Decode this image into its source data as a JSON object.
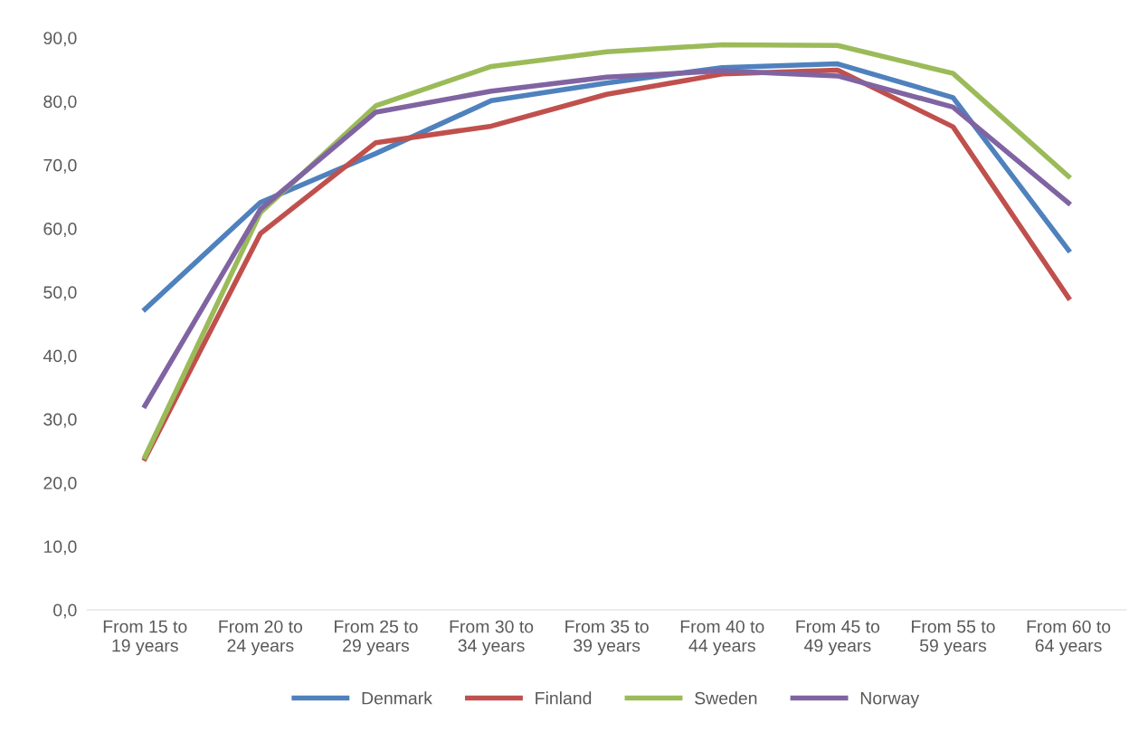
{
  "chart_data": {
    "type": "line",
    "categories": [
      "From 15 to 19 years",
      "From 20 to 24 years",
      "From 25 to 29 years",
      "From 30 to 34 years",
      "From 35 to 39 years",
      "From 40 to 44 years",
      "From 45 to 49 years",
      "From 55 to 59 years",
      "From 60 to 64 years"
    ],
    "series": [
      {
        "name": "Denmark",
        "color": "#4f81bd",
        "values": [
          47.3,
          64.1,
          71.8,
          80.1,
          82.9,
          85.3,
          85.9,
          80.6,
          56.6
        ]
      },
      {
        "name": "Finland",
        "color": "#c0504d",
        "values": [
          23.8,
          59.2,
          73.5,
          76.1,
          81.1,
          84.3,
          84.9,
          76.0,
          49.1
        ]
      },
      {
        "name": "Sweden",
        "color": "#9bbb59",
        "values": [
          24.1,
          62.5,
          79.3,
          85.5,
          87.8,
          88.9,
          88.8,
          84.4,
          68.2
        ]
      },
      {
        "name": "Norway",
        "color": "#8064a2",
        "values": [
          32.1,
          63.0,
          78.3,
          81.6,
          83.8,
          84.8,
          84.0,
          79.1,
          64.0
        ]
      }
    ],
    "ylim": [
      0,
      90
    ],
    "yticks": [
      {
        "value": 0,
        "label": "0,0"
      },
      {
        "value": 10,
        "label": "10,0"
      },
      {
        "value": 20,
        "label": "20,0"
      },
      {
        "value": 30,
        "label": "30,0"
      },
      {
        "value": 40,
        "label": "40,0"
      },
      {
        "value": 50,
        "label": "50,0"
      },
      {
        "value": 60,
        "label": "60,0"
      },
      {
        "value": 70,
        "label": "70,0"
      },
      {
        "value": 80,
        "label": "80,0"
      },
      {
        "value": 90,
        "label": "90,0"
      }
    ],
    "grid": false,
    "legend": "bottom",
    "marker": "none",
    "line_style": "solid"
  }
}
